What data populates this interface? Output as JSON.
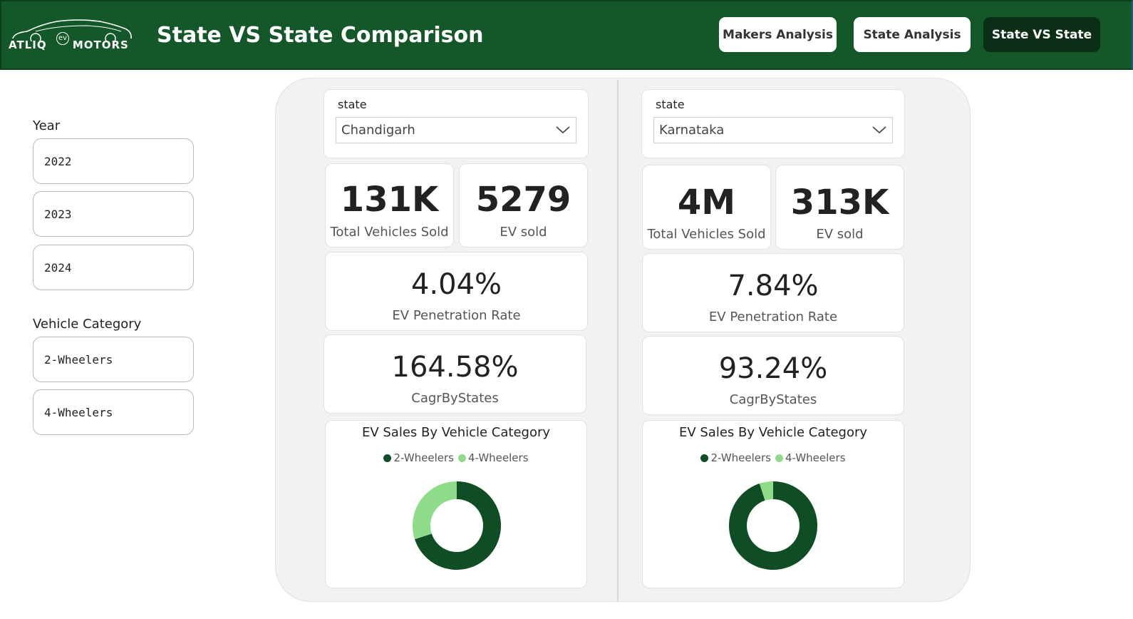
{
  "brand": {
    "logo_text_left": "ATLIQ",
    "logo_text_ev": "ev",
    "logo_text_right": "MOTORS"
  },
  "header": {
    "title": "State VS State Comparison",
    "nav": [
      {
        "label": "Makers Analysis",
        "active": false
      },
      {
        "label": "State Analysis",
        "active": false
      },
      {
        "label": "State VS State",
        "active": true
      }
    ]
  },
  "filters": {
    "year_heading": "Year",
    "years": [
      "2022",
      "2023",
      "2024"
    ],
    "category_heading": "Vehicle Category",
    "categories": [
      "2-Wheelers",
      "4-Wheelers"
    ]
  },
  "colors": {
    "header_bg": "#14582a",
    "two_wheelers": "#0f4d24",
    "four_wheelers": "#8edb8a"
  },
  "left": {
    "state_label": "state",
    "state_value": "Chandigarh",
    "total_vehicles_sold": "131K",
    "total_vehicles_sold_label": "Total Vehicles Sold",
    "ev_sold": "5279",
    "ev_sold_label": "EV sold",
    "penetration": "4.04%",
    "penetration_label": "EV Penetration Rate",
    "cagr": "164.58%",
    "cagr_label": "CagrByStates",
    "chart_title": "EV Sales By Vehicle Category",
    "legend": [
      "2-Wheelers",
      "4-Wheelers"
    ]
  },
  "right": {
    "state_label": "state",
    "state_value": "Karnataka",
    "total_vehicles_sold": "4M",
    "total_vehicles_sold_label": "Total Vehicles Sold",
    "ev_sold": "313K",
    "ev_sold_label": "EV sold",
    "penetration": "7.84%",
    "penetration_label": "EV Penetration Rate",
    "cagr": "93.24%",
    "cagr_label": "CagrByStates",
    "chart_title": "EV Sales By Vehicle Category",
    "legend": [
      "2-Wheelers",
      "4-Wheelers"
    ]
  },
  "chart_data": [
    {
      "type": "pie",
      "title": "EV Sales By Vehicle Category",
      "categories": [
        "2-Wheelers",
        "4-Wheelers"
      ],
      "values": [
        70,
        30
      ],
      "donut": true,
      "legend": "top"
    },
    {
      "type": "pie",
      "title": "EV Sales By Vehicle Category",
      "categories": [
        "2-Wheelers",
        "4-Wheelers"
      ],
      "values": [
        95,
        5
      ],
      "donut": true,
      "legend": "top"
    }
  ]
}
